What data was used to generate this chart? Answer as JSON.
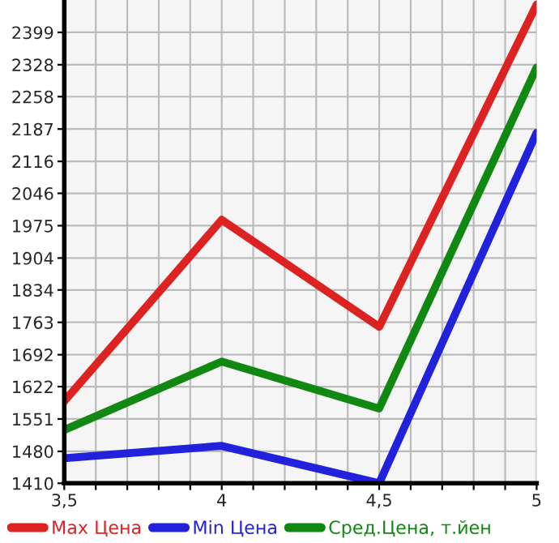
{
  "chart_data": {
    "type": "line",
    "x": [
      3.5,
      4,
      4.5,
      5
    ],
    "series": [
      {
        "name": "Max Цена",
        "color": "#dd2222",
        "values": [
          1590,
          1988,
          1753,
          2460
        ]
      },
      {
        "name": "Min Цена",
        "color": "#2222dd",
        "values": [
          1465,
          1492,
          1410,
          2179
        ]
      },
      {
        "name": "Сред.Цена, т.йен",
        "color": "#118811",
        "values": [
          1527,
          1677,
          1574,
          2322
        ]
      }
    ],
    "xlim": [
      3.5,
      5
    ],
    "ylim": [
      1410,
      2470
    ],
    "xticks": [
      {
        "value": 3.5,
        "label": "3,5"
      },
      {
        "value": 3.6,
        "label": null
      },
      {
        "value": 3.7,
        "label": null
      },
      {
        "value": 3.8,
        "label": null
      },
      {
        "value": 3.9,
        "label": null
      },
      4,
      {
        "value": 4.1,
        "label": null
      },
      {
        "value": 4.2,
        "label": null
      },
      {
        "value": 4.3,
        "label": null
      },
      {
        "value": 4.4,
        "label": null
      },
      {
        "value": 4.5,
        "label": "4,5"
      },
      {
        "value": 4.6,
        "label": null
      },
      {
        "value": 4.7,
        "label": null
      },
      {
        "value": 4.8,
        "label": null
      },
      {
        "value": 4.9,
        "label": null
      },
      5
    ],
    "yticks": [
      1410,
      1480,
      1551,
      1622,
      1692,
      1763,
      1834,
      1904,
      1975,
      2046,
      2116,
      2187,
      2258,
      2328,
      2399
    ],
    "grid": true,
    "legend": "bottom",
    "marker": "none",
    "line_style": "solid"
  }
}
